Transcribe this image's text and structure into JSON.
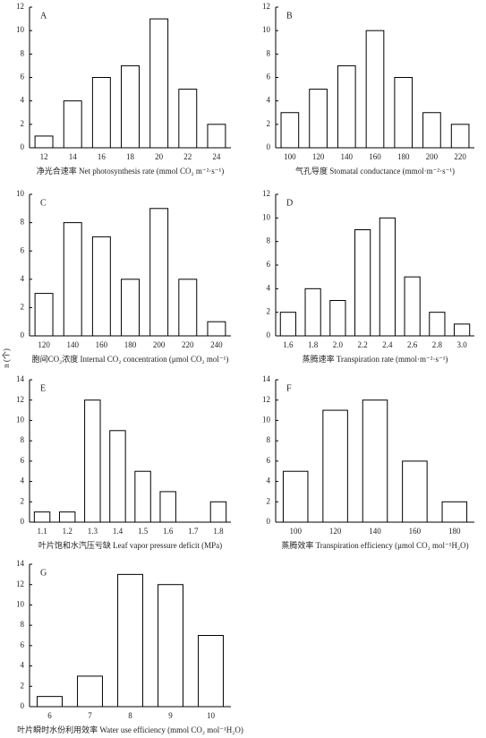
{
  "y_label": "n (个)",
  "chart_data": [
    {
      "type": "bar",
      "title": "A",
      "xlabel": "净光合速率 Net photosynthesis rate (mmol CO₂ m⁻²·s⁻¹)",
      "categories": [
        12,
        14,
        16,
        18,
        20,
        22,
        24
      ],
      "values": [
        1,
        4,
        6,
        7,
        11,
        5,
        2
      ],
      "ylim": [
        0,
        12
      ],
      "yticks": [
        0,
        2,
        4,
        6,
        8,
        10,
        12
      ],
      "color": "#ffffff"
    },
    {
      "type": "bar",
      "title": "B",
      "xlabel": "气孔导度 Stomatal conductance (mmol·m⁻²·s⁻¹)",
      "categories": [
        100,
        120,
        140,
        160,
        180,
        200,
        220
      ],
      "values": [
        3,
        5,
        7,
        10,
        6,
        3,
        2
      ],
      "ylim": [
        0,
        12
      ],
      "yticks": [
        0,
        2,
        4,
        6,
        8,
        10,
        12
      ],
      "color": "#ffffff"
    },
    {
      "type": "bar",
      "title": "C",
      "xlabel": "胞间CO₂浓度 Internal CO₂ concentration (μmol CO₂ mol⁻¹)",
      "categories": [
        120,
        140,
        160,
        180,
        200,
        220,
        240
      ],
      "values": [
        3,
        8,
        7,
        4,
        9,
        4,
        1
      ],
      "ylim": [
        0,
        10
      ],
      "yticks": [
        0,
        2,
        4,
        6,
        8,
        10
      ],
      "color": "#ffffff"
    },
    {
      "type": "bar",
      "title": "D",
      "xlabel": "蒸腾速率 Transpiration rate (mmol·m⁻²·s⁻¹)",
      "categories": [
        "1.6",
        "1.8",
        "2.0",
        "2.2",
        "2.4",
        "2.6",
        "2.8",
        "3.0"
      ],
      "values": [
        2,
        4,
        3,
        9,
        10,
        5,
        2,
        1
      ],
      "ylim": [
        0,
        12
      ],
      "yticks": [
        0,
        2,
        4,
        6,
        8,
        10,
        12
      ],
      "color": "#ffffff"
    },
    {
      "type": "bar",
      "title": "E",
      "xlabel": "叶片饱和水汽压亏缺 Leaf vapor pressure deficit (MPa)",
      "categories": [
        "1.1",
        "1.2",
        "1.3",
        "1.4",
        "1.5",
        "1.6",
        "1.7",
        "1.8"
      ],
      "values": [
        1,
        1,
        12,
        9,
        5,
        3,
        0,
        2
      ],
      "ylim": [
        0,
        14
      ],
      "yticks": [
        0,
        2,
        4,
        6,
        8,
        10,
        12,
        14
      ],
      "color": "#ffffff"
    },
    {
      "type": "bar",
      "title": "F",
      "xlabel": "蒸腾效率 Transpiration efficiency (μmol CO₂ mol⁻¹H₂O)",
      "categories": [
        100,
        120,
        140,
        160,
        180
      ],
      "values": [
        5,
        11,
        12,
        6,
        2
      ],
      "ylim": [
        0,
        14
      ],
      "yticks": [
        0,
        2,
        4,
        6,
        8,
        10,
        12,
        14
      ],
      "color": "#ffffff"
    },
    {
      "type": "bar",
      "title": "G",
      "xlabel": "叶片瞬时水份利用效率 Water use efficiency (mmol CO₂ mol⁻¹H₂O)",
      "categories": [
        6,
        7,
        8,
        9,
        10
      ],
      "values": [
        1,
        3,
        13,
        12,
        7
      ],
      "ylim": [
        0,
        14
      ],
      "yticks": [
        0,
        2,
        4,
        6,
        8,
        10,
        12,
        14
      ],
      "color": "#ffffff"
    }
  ]
}
